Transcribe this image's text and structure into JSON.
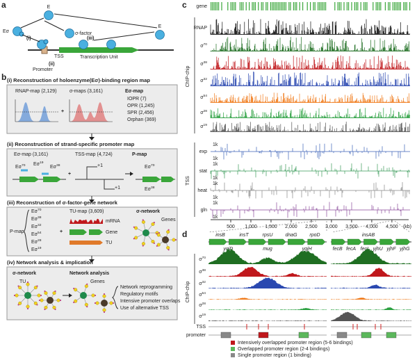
{
  "panel_a": {
    "label": "a",
    "enzyme_left": "E",
    "holoenzyme": "Eσ",
    "sigma_factor": "σ-factor",
    "enzyme_right": "E",
    "step_i": "(i)",
    "step_ii": "(ii)",
    "step_iii": "(iii)",
    "tss": "TSS",
    "promoter": "Promoter",
    "transcription_unit": "Transcription Unit"
  },
  "panel_b": {
    "label": "b",
    "step1": {
      "title": "(i) Reconstruction of holoenzyme(Eσ)-binding region map",
      "rnap_map": "RNAP-map (2,129)",
      "sigma_maps": "σ-maps (3,161)",
      "plus": "+",
      "result": "Eσ-map",
      "classes": [
        "IOPR (7)",
        "OPR (1,245)",
        "SPR (2,456)",
        "Orphan (369)"
      ]
    },
    "step2": {
      "title": "(ii) Reconstruction of strand-specific promoter map",
      "esigma_map": "Eσ-map (3,161)",
      "tss_map": "TSS-map (4,724)",
      "plus": "+",
      "result": "P-map",
      "tss_marks": [
        "+1",
        "+1"
      ],
      "holo": [
        {
          "base": "Eσ",
          "sup": "70"
        },
        {
          "base": "Eσ",
          "sup": "19"
        },
        {
          "base": "Eσ",
          "sup": "38"
        }
      ]
    },
    "step3": {
      "title": "(iii) Reconstruction of σ-factor-gene network",
      "pmap": "P-map",
      "holoenzymes": [
        {
          "base": "Eσ",
          "sup": "70"
        },
        {
          "base": "Eσ",
          "sup": "38"
        },
        {
          "base": "Eσ",
          "sup": "32"
        },
        {
          "base": "Eσ",
          "sup": "54"
        },
        {
          "base": "Eσ",
          "sup": "28"
        },
        {
          "base": "Eσ",
          "sup": "19"
        }
      ],
      "tu_map": "TU-map (3,609)",
      "plus": "+",
      "mrna": "mRNA",
      "gene": "Gene",
      "tu": "TU",
      "result": "σ-network",
      "genes": "Genes"
    },
    "step4": {
      "title": "(iv) Network analysis & implication",
      "network": "σ-network",
      "analysis": "Network analysis",
      "genes": "Genes",
      "tu": "TU",
      "implications": [
        "Network reprogramming",
        "Regulatory motifs",
        "Intensive promoter overlaps",
        "Use of alternative TSS"
      ]
    }
  },
  "panel_c": {
    "label": "c",
    "gene": "gene",
    "gene_color": "#3aa63a",
    "chip_label": "ChIP-chip",
    "tss_label": "TSS",
    "rnap": {
      "name": "RNAP",
      "color": "#111111"
    },
    "sigma_tracks": [
      {
        "base": "σ",
        "sup": "70",
        "color": "#1f6e22"
      },
      {
        "base": "σ",
        "sup": "38",
        "color": "#c0181c"
      },
      {
        "base": "σ",
        "sup": "32",
        "color": "#2a48b0"
      },
      {
        "base": "σ",
        "sup": "54",
        "color": "#f07a1a"
      },
      {
        "base": "σ",
        "sup": "28",
        "color": "#2aa040"
      },
      {
        "base": "σ",
        "sup": "19",
        "color": "#555555"
      }
    ],
    "tss_tracks": [
      {
        "name": "exp",
        "color": "#3c62b8"
      },
      {
        "name": "stat",
        "color": "#3a9a5a"
      },
      {
        "name": "heat",
        "color": "#888888"
      },
      {
        "name": "gln",
        "color": "#8a4a9a"
      }
    ],
    "scale_label": "1k",
    "xlim": [
      0,
      4640
    ],
    "xticks": [
      500,
      {
        "value": 1000,
        "label": "1,000"
      },
      {
        "value": 1500,
        "label": "1,500"
      },
      {
        "value": 2000,
        "label": "2,000"
      },
      {
        "value": 2500,
        "label": "2,500"
      },
      {
        "value": 3000,
        "label": "3,000"
      },
      {
        "value": 3500,
        "label": "3,500"
      },
      {
        "value": 4000,
        "label": "4,000"
      },
      {
        "value": 4500,
        "label": "4,500"
      }
    ],
    "unit": "(kb)"
  },
  "panel_d": {
    "label": "d",
    "left_genes_top": [
      "insB",
      "insT",
      "rpsU",
      "dnaG",
      "rpoD"
    ],
    "left_genes_bottom": [
      "yqjD",
      "mug",
      "yqjH"
    ],
    "right_genes_top": [
      "insAB"
    ],
    "right_genes_bottom": [
      "fecB",
      "fecA",
      "fecI",
      "yjhU",
      "yjhF",
      "yjhG"
    ],
    "chip_label": "ChIP-chip",
    "tss_label": "TSS",
    "promoter_label": "promoter",
    "legend": [
      {
        "label": "Intensively overlapped promoter region (5-6 bindings)",
        "color": "#c0181c"
      },
      {
        "label": "Overlapped promoter region (2-4 bindings)",
        "color": "#5cb85c"
      },
      {
        "label": "Single promoter region (1 binding)",
        "color": "#888888"
      }
    ]
  }
}
